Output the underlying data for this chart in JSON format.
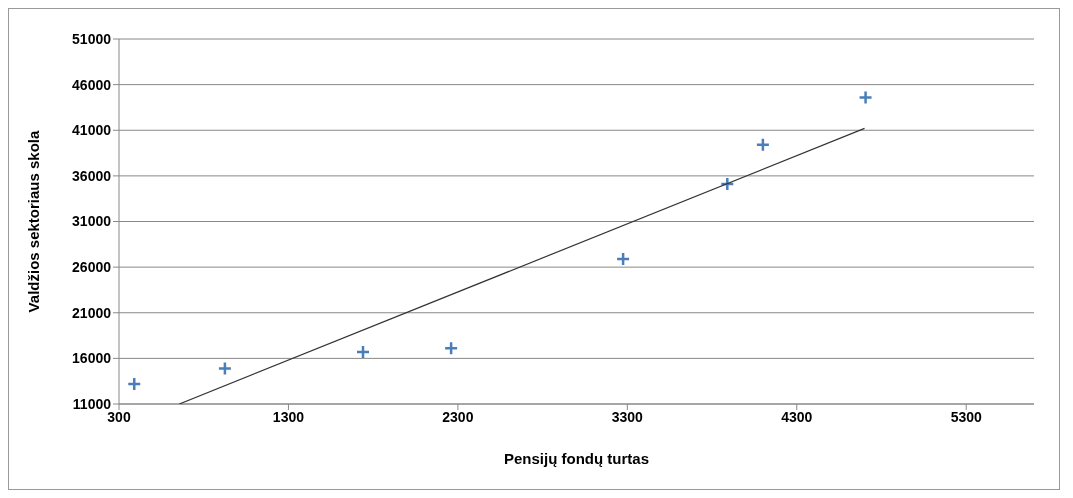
{
  "chart_data": {
    "type": "scatter",
    "xlabel": "Pensijų fondų turtas",
    "ylabel": "Valdžios sektoriaus  skola",
    "series": [
      {
        "type": "scatter",
        "color": "#4a7ebb",
        "marker": "cross",
        "x": [
          390,
          925,
          1740,
          2260,
          3275,
          3890,
          4100,
          4706
        ],
        "values": [
          13200,
          14900,
          16700,
          17100,
          26900,
          35100,
          39400,
          44600
        ]
      },
      {
        "type": "line",
        "color": "#333333",
        "line_style": "solid",
        "marker": "none",
        "x": [
          656,
          4700
        ],
        "values": [
          11000,
          41200
        ]
      }
    ],
    "xlim": [
      300,
      5700
    ],
    "xticks": [
      300,
      1300,
      2300,
      3300,
      4300,
      5300
    ],
    "ylim": [
      11000,
      51000
    ],
    "yticks": [
      11000,
      16000,
      21000,
      26000,
      31000,
      36000,
      41000,
      46000,
      51000
    ],
    "grid": "y"
  }
}
